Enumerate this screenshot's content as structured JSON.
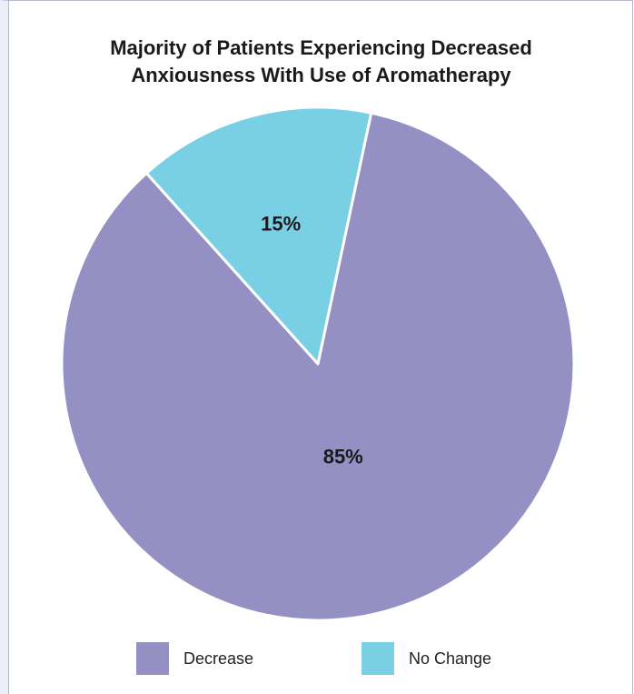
{
  "chart_data": {
    "type": "pie",
    "title_lines": [
      "Majority of Patients Experiencing Decreased",
      "Anxiousness With Use of Aromatherapy"
    ],
    "slices": [
      {
        "name": "Decrease",
        "value": 85,
        "label": "85%",
        "color": "#9590c3"
      },
      {
        "name": "No Change",
        "value": 15,
        "label": "15%",
        "color": "#79d0e4"
      }
    ],
    "legend_placement": "bottom"
  }
}
